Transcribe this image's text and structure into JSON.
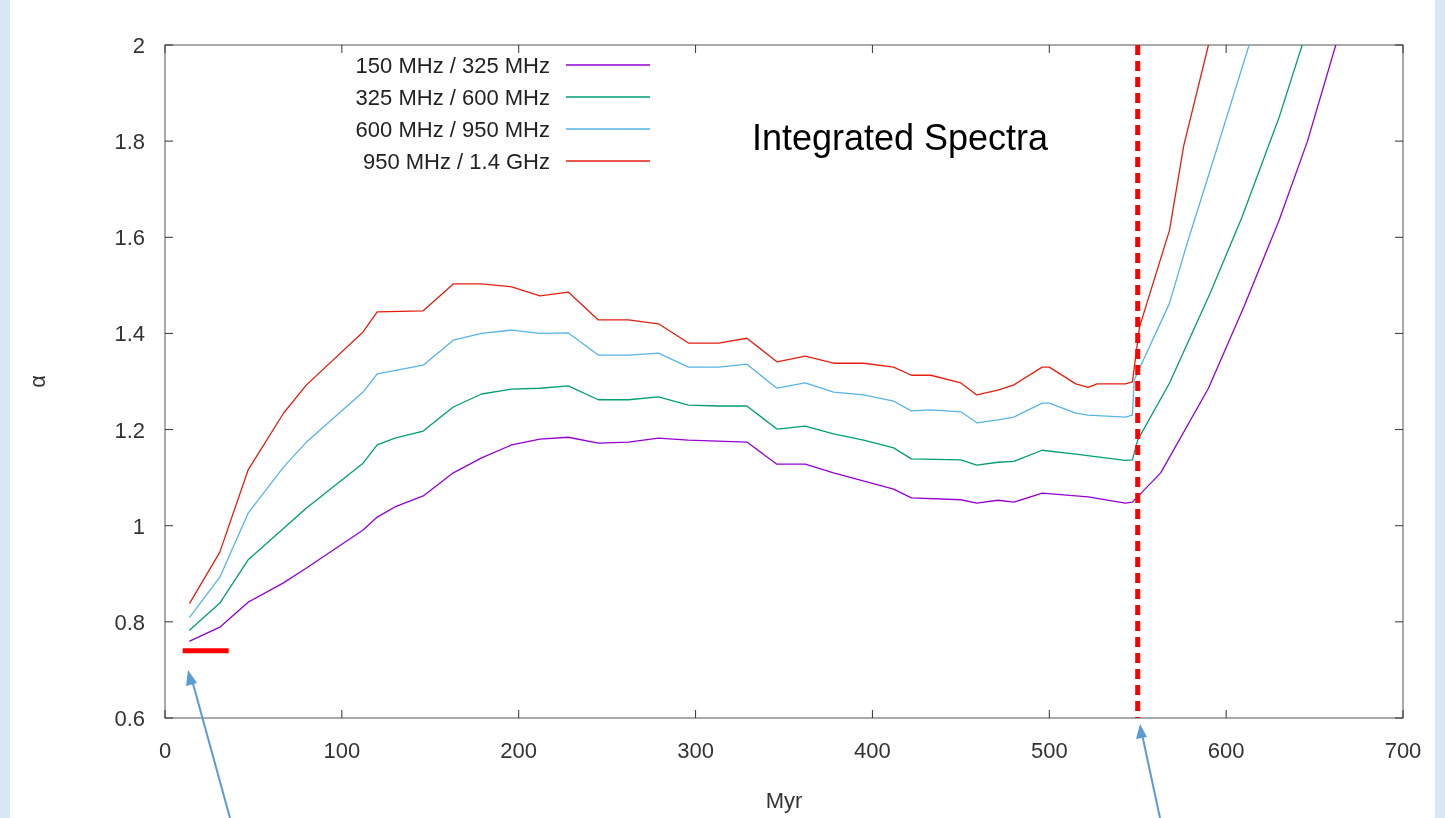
{
  "chart_data": {
    "type": "line",
    "title": "Integrated Spectra",
    "xlabel": "Myr",
    "ylabel": "α",
    "xlim": [
      0,
      700
    ],
    "xticks": [
      0,
      100,
      200,
      300,
      400,
      500,
      600,
      700
    ],
    "ylim": [
      0.6,
      2
    ],
    "yticks": [
      0.6,
      0.8,
      1,
      1.2,
      1.4,
      1.6,
      1.8,
      2
    ],
    "legend": "top left",
    "grid": false,
    "marker": "none",
    "line_style": "solid",
    "series": [
      {
        "name": "150 MHz / 325 MHz",
        "color": "#9400d3",
        "x": [
          14,
          31,
          47,
          67,
          80,
          112,
          120,
          130,
          146,
          163,
          179,
          196,
          212,
          228,
          245,
          262,
          279,
          296,
          329,
          346,
          362,
          378,
          412,
          422,
          450,
          459,
          471,
          480,
          496,
          515,
          522,
          543,
          547,
          563,
          590,
          610,
          630,
          646,
          662
        ],
        "values": [
          0.76,
          0.789,
          0.841,
          0.881,
          0.912,
          0.991,
          1.018,
          1.039,
          1.062,
          1.11,
          1.141,
          1.168,
          1.18,
          1.184,
          1.172,
          1.174,
          1.182,
          1.178,
          1.174,
          1.128,
          1.128,
          1.11,
          1.076,
          1.058,
          1.054,
          1.047,
          1.053,
          1.049,
          1.068,
          1.062,
          1.06,
          1.047,
          1.049,
          1.11,
          1.286,
          1.455,
          1.636,
          1.8,
          2.0
        ]
      },
      {
        "name": "325 MHz / 600 MHz",
        "color": "#009e73",
        "x": [
          14,
          31,
          47,
          80,
          112,
          120,
          130,
          146,
          163,
          179,
          196,
          212,
          228,
          245,
          262,
          279,
          296,
          313,
          329,
          346,
          362,
          378,
          395,
          412,
          422,
          450,
          459,
          471,
          480,
          496,
          515,
          543,
          547,
          550,
          568,
          591,
          609,
          630,
          643
        ],
        "values": [
          0.783,
          0.839,
          0.929,
          1.037,
          1.13,
          1.168,
          1.182,
          1.197,
          1.247,
          1.274,
          1.284,
          1.286,
          1.291,
          1.262,
          1.262,
          1.268,
          1.251,
          1.249,
          1.249,
          1.201,
          1.207,
          1.191,
          1.178,
          1.162,
          1.139,
          1.137,
          1.126,
          1.132,
          1.134,
          1.157,
          1.149,
          1.136,
          1.137,
          1.178,
          1.297,
          1.484,
          1.642,
          1.85,
          2.0
        ]
      },
      {
        "name": "600 MHz / 950 MHz",
        "color": "#56b4e9",
        "x": [
          14,
          31,
          47,
          67,
          80,
          112,
          120,
          146,
          163,
          179,
          196,
          212,
          228,
          245,
          262,
          279,
          296,
          313,
          329,
          346,
          362,
          378,
          395,
          412,
          422,
          433,
          450,
          459,
          471,
          480,
          496,
          500,
          515,
          522,
          543,
          547,
          548,
          568,
          578,
          591,
          613
        ],
        "values": [
          0.81,
          0.893,
          1.026,
          1.122,
          1.174,
          1.278,
          1.316,
          1.334,
          1.386,
          1.4,
          1.407,
          1.4,
          1.401,
          1.355,
          1.355,
          1.359,
          1.33,
          1.33,
          1.336,
          1.286,
          1.297,
          1.278,
          1.272,
          1.259,
          1.239,
          1.241,
          1.237,
          1.214,
          1.22,
          1.226,
          1.255,
          1.255,
          1.234,
          1.23,
          1.226,
          1.23,
          1.303,
          1.463,
          1.588,
          1.74,
          2.0
        ]
      },
      {
        "name": "950 MHz / 1.4 GHz",
        "color": "#e51e10",
        "x": [
          14,
          31,
          47,
          67,
          80,
          112,
          120,
          146,
          163,
          179,
          196,
          212,
          228,
          245,
          262,
          279,
          296,
          313,
          329,
          346,
          362,
          378,
          395,
          412,
          422,
          433,
          450,
          459,
          471,
          480,
          496,
          500,
          515,
          522,
          527,
          543,
          547,
          551,
          568,
          576,
          590
        ],
        "values": [
          0.839,
          0.945,
          1.116,
          1.234,
          1.293,
          1.403,
          1.445,
          1.447,
          1.503,
          1.503,
          1.497,
          1.478,
          1.486,
          1.428,
          1.428,
          1.42,
          1.38,
          1.38,
          1.39,
          1.341,
          1.353,
          1.338,
          1.338,
          1.33,
          1.313,
          1.313,
          1.297,
          1.272,
          1.282,
          1.293,
          1.33,
          1.33,
          1.295,
          1.288,
          1.295,
          1.295,
          1.299,
          1.413,
          1.615,
          1.79,
          2.0
        ]
      },
      {
        "color": "#ff0000",
        "x": [
          10,
          36
        ],
        "values": [
          0.74,
          0.74
        ]
      }
    ],
    "ref_lines": [
      {
        "axis": "x",
        "value": 550,
        "color": "#ff0000",
        "line_style": "dashed"
      }
    ]
  }
}
